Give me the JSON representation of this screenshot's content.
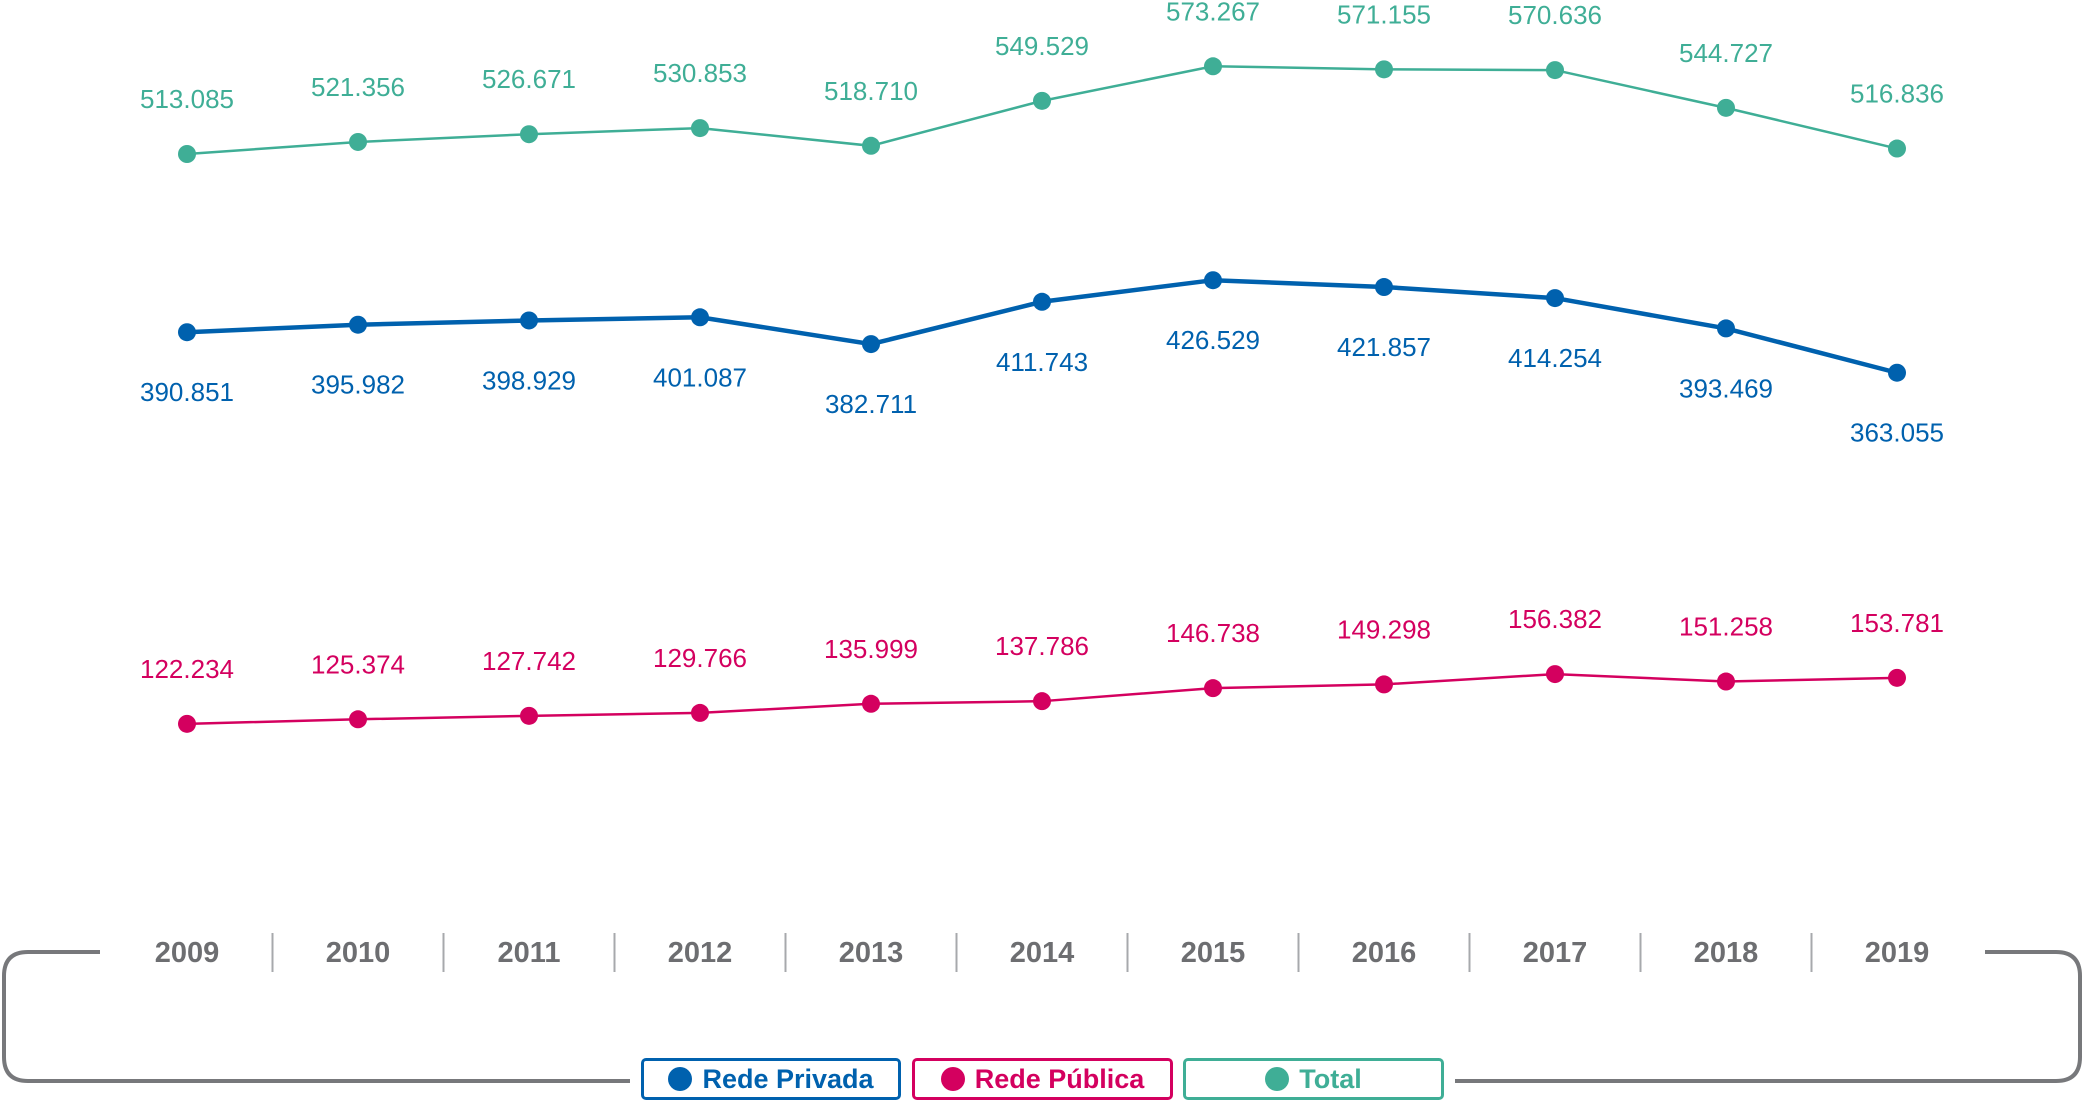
{
  "chart_data": {
    "type": "line",
    "title": "",
    "xlabel": "",
    "ylabel": "",
    "x": [
      "2009",
      "2010",
      "2011",
      "2012",
      "2013",
      "2014",
      "2015",
      "2016",
      "2017",
      "2018",
      "2019"
    ],
    "series": [
      {
        "name": "Total",
        "color": "#3fae96",
        "values": [
          513085,
          521356,
          526671,
          530853,
          518710,
          549529,
          573267,
          571155,
          570636,
          544727,
          516836
        ],
        "labels": [
          "513.085",
          "521.356",
          "526.671",
          "530.853",
          "518.710",
          "549.529",
          "573.267",
          "571.155",
          "570.636",
          "544.727",
          "516.836"
        ],
        "label_position": "above"
      },
      {
        "name": "Rede Privada",
        "color": "#0061ae",
        "values": [
          390851,
          395982,
          398929,
          401087,
          382711,
          411743,
          426529,
          421857,
          414254,
          393469,
          363055
        ],
        "labels": [
          "390.851",
          "395.982",
          "398.929",
          "401.087",
          "382.711",
          "411.743",
          "426.529",
          "421.857",
          "414.254",
          "393.469",
          "363.055"
        ],
        "label_position": "below"
      },
      {
        "name": "Rede Pública",
        "color": "#d4005f",
        "values": [
          122234,
          125374,
          127742,
          129766,
          135999,
          137786,
          146738,
          149298,
          156382,
          151258,
          153781
        ],
        "labels": [
          "122.234",
          "125.374",
          "127.742",
          "129.766",
          "135.999",
          "137.786",
          "146.738",
          "149.298",
          "156.382",
          "151.258",
          "153.781"
        ],
        "label_position": "above"
      }
    ],
    "grid": false,
    "legend_placement": "bottom-center"
  },
  "legend": [
    {
      "label": "Rede Privada",
      "color": "#0061ae"
    },
    {
      "label": "Rede Pública",
      "color": "#d4005f"
    },
    {
      "label": "Total",
      "color": "#3fae96"
    }
  ]
}
